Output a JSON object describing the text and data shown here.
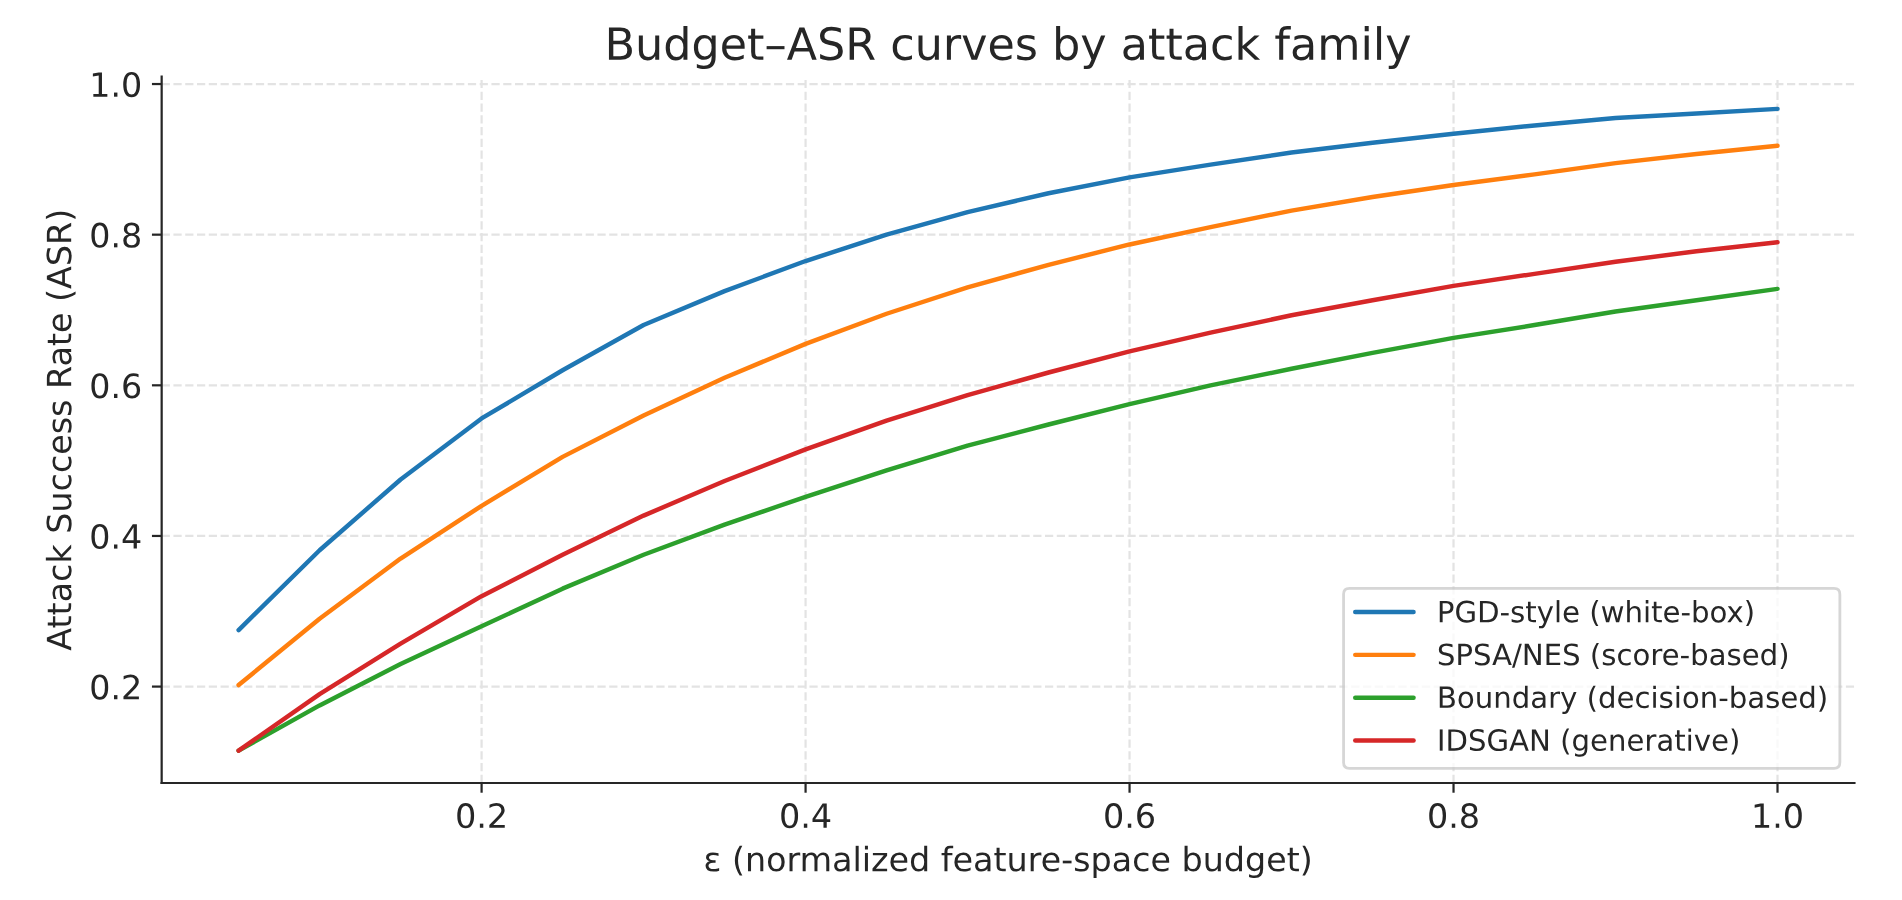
{
  "chart_data": {
    "type": "line",
    "title": "Budget–ASR curves by attack family",
    "xlabel": "ε (normalized feature-space budget)",
    "ylabel": "Attack Success Rate (ASR)",
    "x": [
      0.05,
      0.1,
      0.15,
      0.2,
      0.25,
      0.3,
      0.35,
      0.4,
      0.45,
      0.5,
      0.55,
      0.6,
      0.65,
      0.7,
      0.75,
      0.8,
      0.85,
      0.9,
      0.95,
      1.0
    ],
    "series": [
      {
        "name": "PGD-style (white-box)",
        "color": "#1f77b4",
        "values": [
          0.275,
          0.381,
          0.475,
          0.556,
          0.62,
          0.68,
          0.725,
          0.765,
          0.8,
          0.83,
          0.855,
          0.876,
          0.893,
          0.909,
          0.922,
          0.934,
          0.945,
          0.955,
          0.961,
          0.967
        ]
      },
      {
        "name": "SPSA/NES (score-based)",
        "color": "#ff7f0e",
        "values": [
          0.202,
          0.29,
          0.37,
          0.44,
          0.505,
          0.56,
          0.61,
          0.655,
          0.695,
          0.73,
          0.76,
          0.787,
          0.81,
          0.832,
          0.85,
          0.866,
          0.88,
          0.895,
          0.907,
          0.918
        ]
      },
      {
        "name": "Boundary (decision-based)",
        "color": "#2ca02c",
        "values": [
          0.115,
          0.175,
          0.23,
          0.28,
          0.33,
          0.375,
          0.415,
          0.452,
          0.487,
          0.52,
          0.548,
          0.575,
          0.6,
          0.622,
          0.643,
          0.663,
          0.68,
          0.698,
          0.713,
          0.728
        ]
      },
      {
        "name": "IDSGAN (generative)",
        "color": "#d62728",
        "values": [
          0.115,
          0.19,
          0.257,
          0.32,
          0.375,
          0.427,
          0.473,
          0.515,
          0.553,
          0.587,
          0.617,
          0.645,
          0.67,
          0.693,
          0.713,
          0.732,
          0.748,
          0.764,
          0.778,
          0.79
        ]
      }
    ],
    "xlim": [
      0.0025,
      1.0475
    ],
    "xticks": [
      0.2,
      0.4,
      0.6,
      0.8,
      {
        "value": 1,
        "label": "1.0"
      }
    ],
    "ylim": [
      0.072,
      1.01
    ],
    "yticks": [
      0.2,
      0.4,
      0.6,
      0.8,
      {
        "value": 1,
        "label": "1.0"
      }
    ],
    "grid": true,
    "legend": "bottom right",
    "marker": "none",
    "line_style": "solid"
  }
}
